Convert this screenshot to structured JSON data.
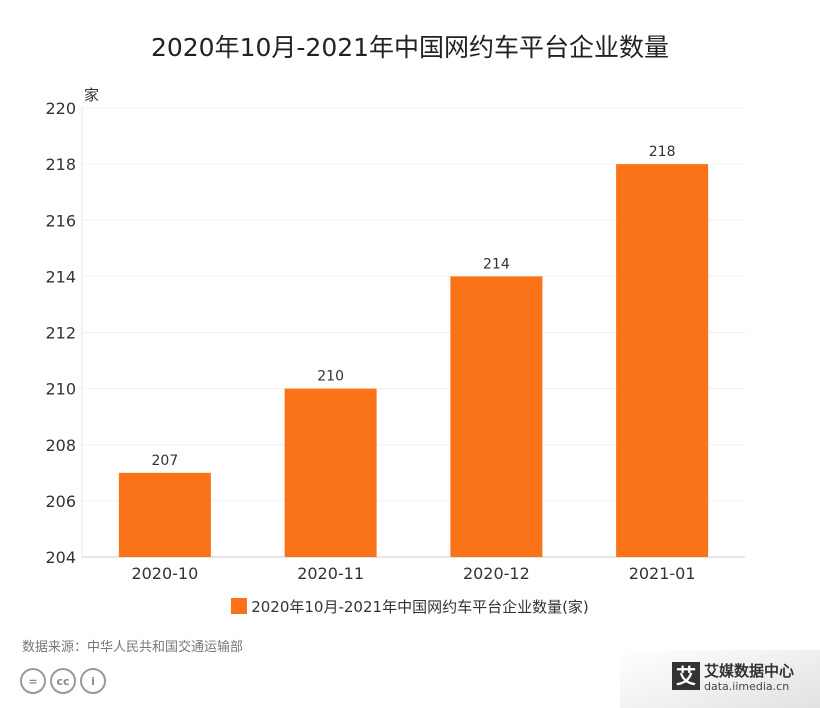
{
  "chart_data": {
    "type": "bar",
    "title": "2020年10月-2021年中国网约车平台企业数量",
    "ylabel": "家",
    "xlabel": "",
    "categories": [
      "2020-10",
      "2020-11",
      "2020-12",
      "2021-01"
    ],
    "series": [
      {
        "name": "2020年10月-2021年中国网约车平台企业数量(家)",
        "values": [
          207,
          210,
          214,
          218
        ],
        "color": "#fa7318"
      }
    ],
    "ylim": [
      204,
      220
    ],
    "yticks": [
      204,
      206,
      208,
      210,
      212,
      214,
      216,
      218,
      220
    ],
    "grid": true,
    "legend": "bottom"
  },
  "footer": {
    "source": "数据来源：中华人民共和国交通运输部",
    "cc_icons": [
      "equals-icon",
      "cc-icon",
      "person-icon"
    ]
  },
  "brand": {
    "logo_char": "艾",
    "name": "艾媒数据中心",
    "url": "data.iimedia.cn"
  }
}
